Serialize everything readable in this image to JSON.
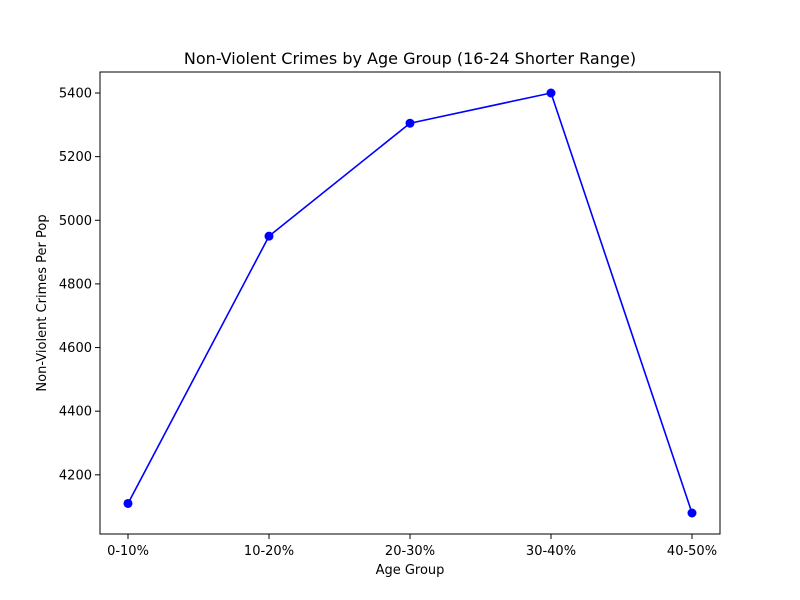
{
  "chart_data": {
    "type": "line",
    "title": "Non-Violent Crimes by Age Group (16-24 Shorter Range)",
    "xlabel": "Age Group",
    "ylabel": "Non-Violent Crimes Per Pop",
    "categories": [
      "0-10%",
      "10-20%",
      "20-30%",
      "30-40%",
      "40-50%"
    ],
    "series": [
      {
        "values": [
          4110,
          4950,
          5305,
          5400,
          4080
        ],
        "color": "#0000ff",
        "marker": "circle"
      }
    ],
    "yticks": [
      4200,
      4400,
      4600,
      4800,
      5000,
      5200,
      5400
    ],
    "ylim": [
      4014,
      5466
    ],
    "grid": false,
    "legend": "none"
  }
}
